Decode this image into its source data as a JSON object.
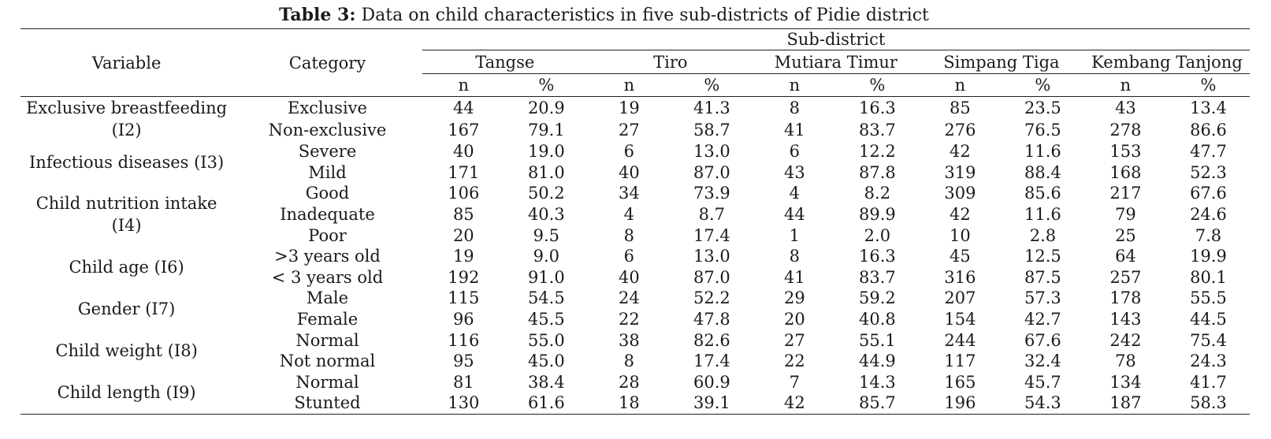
{
  "caption": {
    "label": "Table 3:",
    "text": "Data on child characteristics in five sub-districts of Pidie district"
  },
  "headers": {
    "variable": "Variable",
    "category": "Category",
    "group": "Sub-district",
    "districts": [
      "Tangse",
      "Tiro",
      "Mutiara Timur",
      "Simpang Tiga",
      "Kembang Tanjong"
    ],
    "n": "n",
    "pct": "%"
  },
  "groups": [
    {
      "variable": "Exclusive breastfeeding (I2)",
      "rows": [
        {
          "category": "Exclusive",
          "values": [
            "44",
            "20.9",
            "19",
            "41.3",
            "8",
            "16.3",
            "85",
            "23.5",
            "43",
            "13.4"
          ]
        },
        {
          "category": "Non-exclusive",
          "values": [
            "167",
            "79.1",
            "27",
            "58.7",
            "41",
            "83.7",
            "276",
            "76.5",
            "278",
            "86.6"
          ]
        }
      ]
    },
    {
      "variable": "Infectious diseases (I3)",
      "rows": [
        {
          "category": "Severe",
          "values": [
            "40",
            "19.0",
            "6",
            "13.0",
            "6",
            "12.2",
            "42",
            "11.6",
            "153",
            "47.7"
          ]
        },
        {
          "category": "Mild",
          "values": [
            "171",
            "81.0",
            "40",
            "87.0",
            "43",
            "87.8",
            "319",
            "88.4",
            "168",
            "52.3"
          ]
        }
      ]
    },
    {
      "variable": "Child nutrition intake (I4)",
      "rows": [
        {
          "category": "Good",
          "values": [
            "106",
            "50.2",
            "34",
            "73.9",
            "4",
            "8.2",
            "309",
            "85.6",
            "217",
            "67.6"
          ]
        },
        {
          "category": "Inadequate",
          "values": [
            "85",
            "40.3",
            "4",
            "8.7",
            "44",
            "89.9",
            "42",
            "11.6",
            "79",
            "24.6"
          ]
        },
        {
          "category": "Poor",
          "values": [
            "20",
            "9.5",
            "8",
            "17.4",
            "1",
            "2.0",
            "10",
            "2.8",
            "25",
            "7.8"
          ]
        }
      ]
    },
    {
      "variable": "Child age (I6)",
      "rows": [
        {
          "category": ">3 years old",
          "values": [
            "19",
            "9.0",
            "6",
            "13.0",
            "8",
            "16.3",
            "45",
            "12.5",
            "64",
            "19.9"
          ]
        },
        {
          "category": "< 3 years old",
          "values": [
            "192",
            "91.0",
            "40",
            "87.0",
            "41",
            "83.7",
            "316",
            "87.5",
            "257",
            "80.1"
          ]
        }
      ]
    },
    {
      "variable": "Gender (I7)",
      "rows": [
        {
          "category": "Male",
          "values": [
            "115",
            "54.5",
            "24",
            "52.2",
            "29",
            "59.2",
            "207",
            "57.3",
            "178",
            "55.5"
          ]
        },
        {
          "category": "Female",
          "values": [
            "96",
            "45.5",
            "22",
            "47.8",
            "20",
            "40.8",
            "154",
            "42.7",
            "143",
            "44.5"
          ]
        }
      ]
    },
    {
      "variable": "Child weight (I8)",
      "rows": [
        {
          "category": "Normal",
          "values": [
            "116",
            "55.0",
            "38",
            "82.6",
            "27",
            "55.1",
            "244",
            "67.6",
            "242",
            "75.4"
          ]
        },
        {
          "category": "Not normal",
          "values": [
            "95",
            "45.0",
            "8",
            "17.4",
            "22",
            "44.9",
            "117",
            "32.4",
            "78",
            "24.3"
          ]
        }
      ]
    },
    {
      "variable": "Child length (I9)",
      "rows": [
        {
          "category": "Normal",
          "values": [
            "81",
            "38.4",
            "28",
            "60.9",
            "7",
            "14.3",
            "165",
            "45.7",
            "134",
            "41.7"
          ]
        },
        {
          "category": "Stunted",
          "values": [
            "130",
            "61.6",
            "18",
            "39.1",
            "42",
            "85.7",
            "196",
            "54.3",
            "187",
            "58.3"
          ]
        }
      ]
    }
  ]
}
